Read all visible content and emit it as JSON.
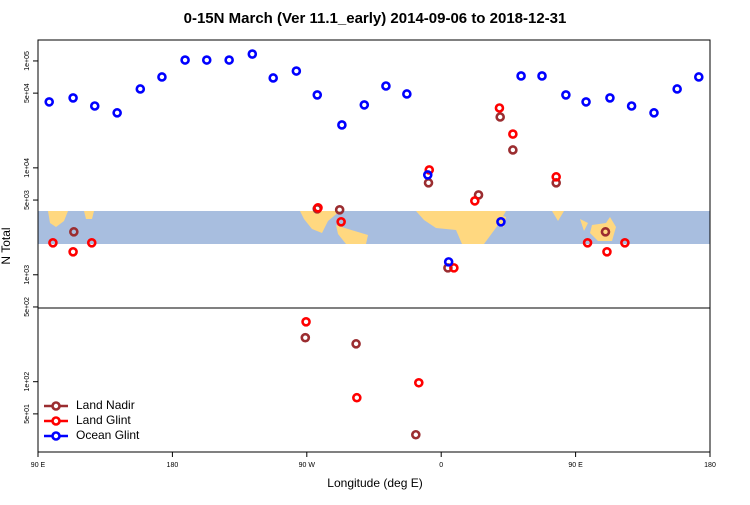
{
  "chart_data": {
    "type": "scatter",
    "title": "0-15N March (Ver 11.1_early)   2014-09-06 to 2018-12-31",
    "x_label": "Longitude (deg E)",
    "y_label": "N Total",
    "xlim": [
      90,
      540
    ],
    "xticks": [
      {
        "value": 90,
        "label": "90 E"
      },
      180,
      {
        "value": 270,
        "label": "90 W"
      },
      {
        "value": 360,
        "label": "0"
      },
      {
        "value": 450,
        "label": "90 E"
      },
      {
        "value": 540,
        "label": "180"
      }
    ],
    "ylim": [
      22,
      157000
    ],
    "ylog": true,
    "yticks": [
      {
        "value": 100000,
        "label": "1e+05"
      },
      {
        "value": 50000,
        "label": "5e+04"
      },
      {
        "value": 10000,
        "label": "1e+04"
      },
      {
        "value": 5000,
        "label": "5e+03"
      },
      {
        "value": 1000,
        "label": "1e+03"
      },
      {
        "value": 500,
        "label": "5e+02"
      },
      {
        "value": 100,
        "label": "1e+02"
      },
      {
        "value": 50,
        "label": "5e+01"
      }
    ],
    "legend": "bottom-left",
    "series": [
      {
        "name": "Land Nadir",
        "color": "#9b2d30",
        "x": [
          114,
          277,
          292,
          351.5,
          364.5,
          385,
          399.5,
          408,
          437,
          470,
          269,
          303,
          343
        ],
        "y": [
          2520,
          4140,
          4050,
          7240,
          1160,
          5580,
          29900,
          14700,
          7240,
          2520,
          258,
          226,
          31.9
        ]
      },
      {
        "name": "Land Glint",
        "color": "#ff0000",
        "x": [
          100,
          113.5,
          126,
          277.5,
          293,
          352,
          368.5,
          382.5,
          399,
          408,
          437,
          458,
          471,
          483,
          269.5,
          303.5,
          345
        ],
        "y": [
          1990,
          1640,
          1990,
          4230,
          3130,
          9570,
          1160,
          4910,
          36300,
          20700,
          8240,
          1990,
          1640,
          1990,
          363,
          70.8,
          97.7
        ]
      },
      {
        "name": "Ocean Glint",
        "color": "#0000ff",
        "x": [
          97.5,
          113.5,
          128,
          143,
          158.5,
          173,
          188.5,
          203,
          218,
          233.5,
          247.5,
          263,
          277,
          293.5,
          308.5,
          323,
          337,
          351,
          365,
          400,
          413.5,
          427.5,
          443.5,
          457,
          473,
          487.5,
          502.5,
          518,
          532.5
        ],
        "y": [
          41400,
          45100,
          37900,
          32700,
          54700,
          70800,
          102000,
          102000,
          102000,
          116000,
          69300,
          80500,
          48100,
          25200,
          38800,
          58300,
          49100,
          8590,
          1320,
          3130,
          72400,
          72400,
          48100,
          41400,
          45100,
          37900,
          32700,
          54700,
          70800
        ]
      }
    ]
  }
}
